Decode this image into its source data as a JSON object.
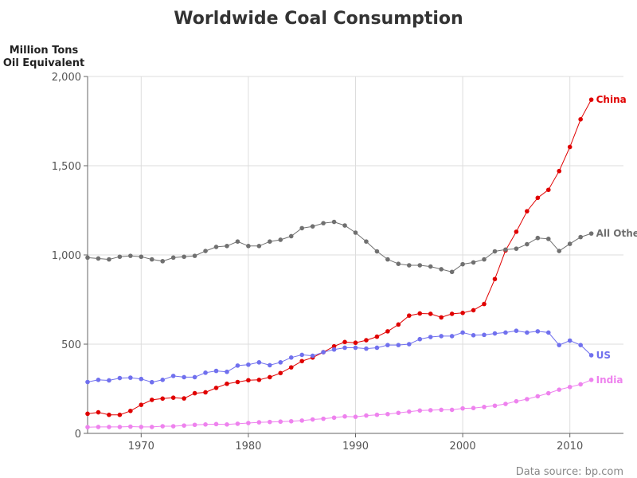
{
  "chart_data": {
    "type": "line",
    "title": "Worldwide Coal Consumption",
    "ylabel_lines": [
      "Million Tons",
      "Oil Equivalent"
    ],
    "xlabel": "",
    "source": "Data source: bp.com",
    "xlim": [
      1965,
      2015
    ],
    "ylim": [
      0,
      2000
    ],
    "x_ticks": [
      1970,
      1980,
      1990,
      2000,
      2010
    ],
    "y_ticks": [
      0,
      500,
      1000,
      1500,
      2000
    ],
    "y_tick_labels": [
      "0",
      "500",
      "1,000",
      "1,500",
      "2,000"
    ],
    "grid": true,
    "x": [
      1965,
      1966,
      1967,
      1968,
      1969,
      1970,
      1971,
      1972,
      1973,
      1974,
      1975,
      1976,
      1977,
      1978,
      1979,
      1980,
      1981,
      1982,
      1983,
      1984,
      1985,
      1986,
      1987,
      1988,
      1989,
      1990,
      1991,
      1992,
      1993,
      1994,
      1995,
      1996,
      1997,
      1998,
      1999,
      2000,
      2001,
      2002,
      2003,
      2004,
      2005,
      2006,
      2007,
      2008,
      2009,
      2010,
      2011,
      2012
    ],
    "series": [
      {
        "name": "China",
        "color": "#e00000",
        "values": [
          110,
          118,
          104,
          104,
          126,
          160,
          188,
          195,
          200,
          196,
          225,
          230,
          255,
          278,
          288,
          298,
          300,
          315,
          338,
          370,
          405,
          425,
          455,
          488,
          512,
          508,
          522,
          542,
          572,
          610,
          660,
          672,
          670,
          650,
          670,
          675,
          690,
          725,
          865,
          1025,
          1130,
          1245,
          1320,
          1365,
          1470,
          1605,
          1760,
          1870
        ]
      },
      {
        "name": "All Others",
        "color": "#707070",
        "values": [
          985,
          980,
          975,
          990,
          995,
          990,
          975,
          965,
          985,
          990,
          995,
          1022,
          1045,
          1050,
          1075,
          1050,
          1050,
          1075,
          1085,
          1105,
          1150,
          1160,
          1178,
          1185,
          1165,
          1125,
          1075,
          1020,
          975,
          950,
          942,
          942,
          935,
          920,
          905,
          948,
          958,
          975,
          1020,
          1030,
          1035,
          1060,
          1095,
          1090,
          1022,
          1062,
          1100,
          1120
        ]
      },
      {
        "name": "US",
        "color": "#7070ee",
        "values": [
          288,
          300,
          297,
          310,
          312,
          305,
          287,
          300,
          322,
          315,
          315,
          340,
          350,
          345,
          380,
          385,
          398,
          382,
          398,
          425,
          440,
          435,
          455,
          470,
          480,
          480,
          475,
          480,
          495,
          495,
          500,
          528,
          540,
          545,
          545,
          565,
          550,
          552,
          560,
          565,
          575,
          565,
          572,
          565,
          495,
          520,
          495,
          438
        ]
      },
      {
        "name": "India",
        "color": "#ee82ee",
        "values": [
          35,
          36,
          36,
          36,
          38,
          36,
          36,
          40,
          40,
          44,
          48,
          50,
          52,
          50,
          54,
          58,
          62,
          64,
          66,
          68,
          72,
          78,
          82,
          88,
          95,
          93,
          100,
          104,
          108,
          115,
          122,
          128,
          130,
          132,
          132,
          140,
          142,
          148,
          155,
          165,
          180,
          192,
          208,
          225,
          245,
          260,
          275,
          300
        ]
      }
    ]
  }
}
